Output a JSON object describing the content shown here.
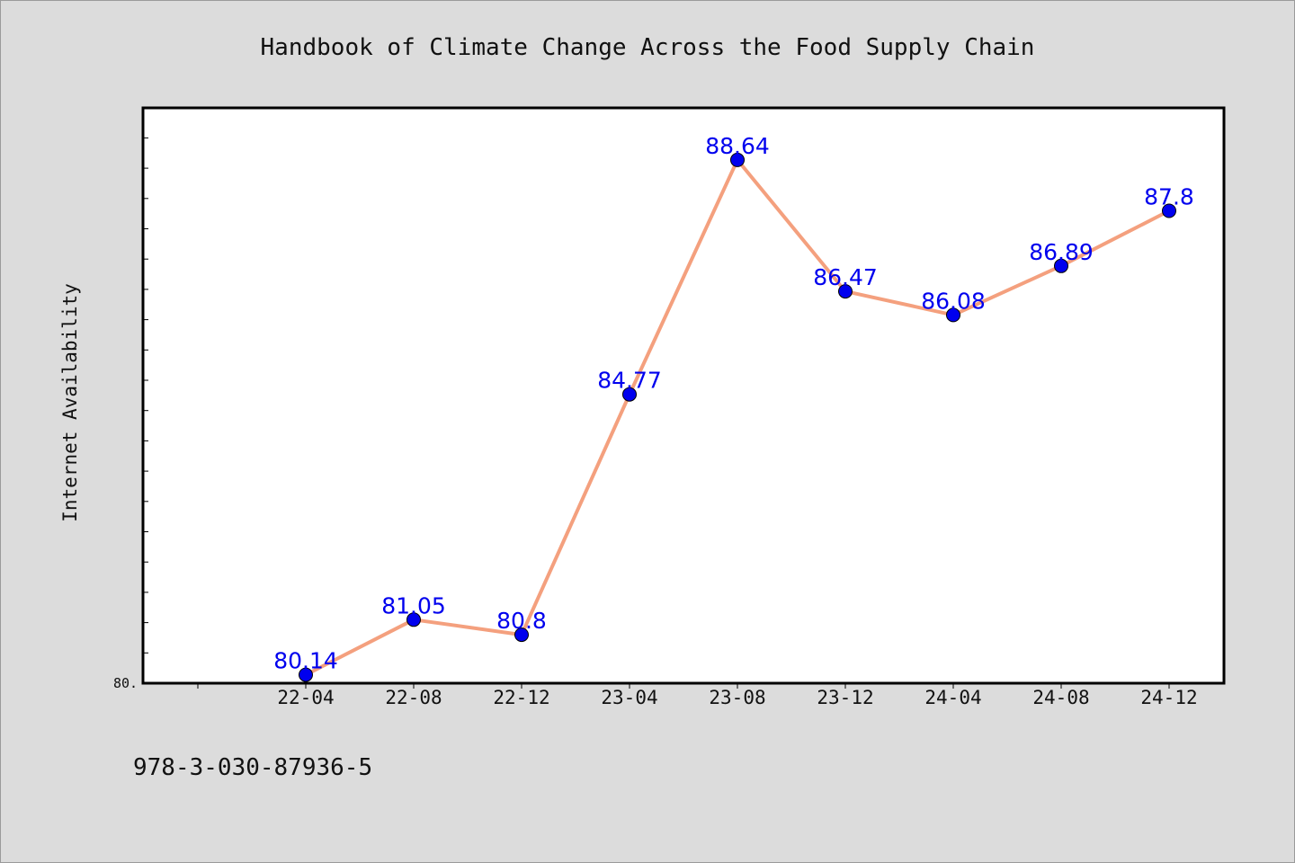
{
  "chart_data": {
    "type": "line",
    "title": "Handbook of Climate Change Across the Food Supply Chain",
    "xlabel": "",
    "ylabel": "Internet Availability",
    "categories": [
      "22-04",
      "22-08",
      "22-12",
      "23-04",
      "23-08",
      "23-12",
      "24-04",
      "24-08",
      "24-12"
    ],
    "values": [
      80.14,
      81.05,
      80.8,
      84.77,
      88.64,
      86.47,
      86.08,
      86.89,
      87.8
    ],
    "value_labels": [
      "80.14",
      "81.05",
      "80.8",
      "84.77",
      "88.64",
      "86.47",
      "86.08",
      "86.89",
      "87.8"
    ],
    "ylim": [
      80.0,
      89.5
    ],
    "y_tick_labels": [
      "80."
    ],
    "grid": false,
    "legend": "none",
    "colors": {
      "line": "#f4a07e",
      "marker": "#0000ee",
      "data_label": "#0000ee",
      "plot_background": "#ffffff",
      "page_background": "#dcdcdc"
    }
  },
  "footer": {
    "isbn": "978-3-030-87936-5"
  }
}
